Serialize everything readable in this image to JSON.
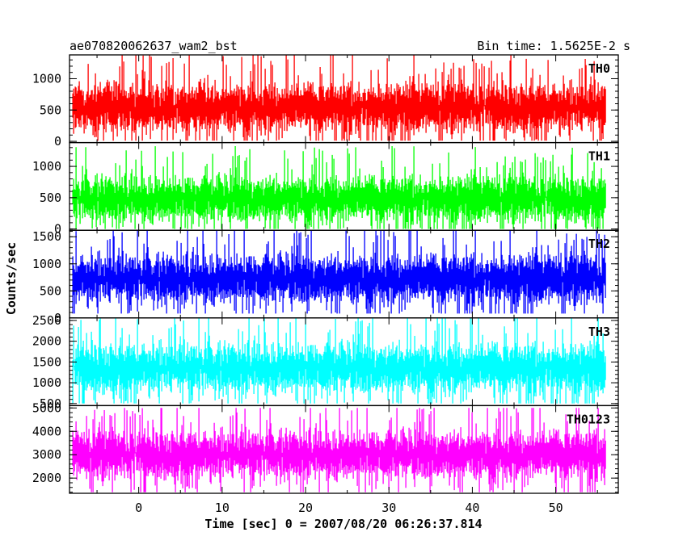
{
  "header": {
    "title": "ae070820062637_wam2_bst",
    "bin_time": "Bin time: 1.5625E-2 s"
  },
  "chart_data": {
    "type": "line",
    "xlabel": "Time [sec] 0 = 2007/08/20 06:26:37.814",
    "ylabel": "Counts/sec",
    "xlim": [
      -8.3,
      57.5
    ],
    "x_data_range": [
      -7.9,
      56.0
    ],
    "x_ticks": [
      0,
      10,
      20,
      30,
      40,
      50
    ],
    "x_tick_labels": [
      "0",
      "10",
      "20",
      "30",
      "40",
      "50"
    ],
    "grid": false,
    "panels": [
      {
        "label": "TH0",
        "color": "#ff0000",
        "ylim": [
          -20,
          1380
        ],
        "y_ticks": [
          0,
          500,
          1000
        ],
        "y_tick_labels": [
          "0",
          "500",
          "1000"
        ],
        "mean": 540,
        "typical_low": 150,
        "typical_high": 1050,
        "min": 10,
        "max": 1380
      },
      {
        "label": "TH1",
        "color": "#00ff00",
        "ylim": [
          -20,
          1380
        ],
        "y_ticks": [
          0,
          500,
          1000
        ],
        "y_tick_labels": [
          "0",
          "500",
          "1000"
        ],
        "mean": 480,
        "typical_low": 100,
        "typical_high": 950,
        "min": 0,
        "max": 1380
      },
      {
        "label": "TH2",
        "color": "#0000ff",
        "ylim": [
          0,
          1620
        ],
        "y_ticks": [
          0,
          500,
          1000,
          1500
        ],
        "y_tick_labels": [
          "0",
          "500",
          "1000",
          "1500"
        ],
        "mean": 720,
        "typical_low": 250,
        "typical_high": 1300,
        "min": 80,
        "max": 1620
      },
      {
        "label": "TH3",
        "color": "#00ffff",
        "ylim": [
          450,
          2560
        ],
        "y_ticks": [
          500,
          1000,
          1500,
          2000,
          2500
        ],
        "y_tick_labels": [
          "500",
          "1000",
          "1500",
          "2000",
          "2500"
        ],
        "mean": 1350,
        "typical_low": 700,
        "typical_high": 2100,
        "min": 500,
        "max": 2550
      },
      {
        "label": "TH0123",
        "color": "#ff00ff",
        "ylim": [
          1350,
          5100
        ],
        "y_ticks": [
          2000,
          3000,
          4000,
          5000
        ],
        "y_tick_labels": [
          "2000",
          "3000",
          "4000",
          "5000"
        ],
        "mean": 3000,
        "typical_low": 1900,
        "typical_high": 4300,
        "min": 1400,
        "max": 5000
      }
    ]
  }
}
